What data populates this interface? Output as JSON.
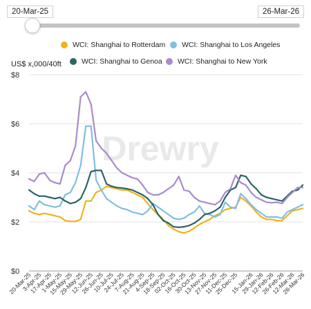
{
  "range_slider": {
    "start": "20-Mar-25",
    "end": "26-Mar-26"
  },
  "legend": [
    {
      "label": "WCI: Shanghai to Rotterdam",
      "color": "#f0b21c"
    },
    {
      "label": "WCI: Shanghai to Los Angeles",
      "color": "#83bde0"
    },
    {
      "label": "WCI: Shanghai to Genoa",
      "color": "#2a6467"
    },
    {
      "label": "WCI: Shanghai to New York",
      "color": "#a98bcb"
    }
  ],
  "watermark": {
    "brand": "Drewry"
  },
  "chart_data": {
    "type": "line",
    "ylabel": "US$ x,000/40ft",
    "ylim": [
      0,
      8
    ],
    "yticks": [
      0,
      2,
      4,
      6,
      8
    ],
    "ytick_labels": [
      "$0",
      "$2",
      "$4",
      "$6",
      "$8"
    ],
    "grid": true,
    "legend_position": "top",
    "x": [
      "20-Mar-25",
      "27-Mar-25",
      "3-Apr-25",
      "10-Apr-25",
      "17-Apr-25",
      "24-Apr-25",
      "1-May-25",
      "8-May-25",
      "15-May-25",
      "22-May-25",
      "29-May-25",
      "5-Jun-25",
      "12-Jun-25",
      "19-Jun-25",
      "26-Jun-25",
      "3-Jul-25",
      "10-Jul-25",
      "17-Jul-25",
      "24-Jul-25",
      "31-Jul-25",
      "7-Aug-25",
      "14-Aug-25",
      "21-Aug-25",
      "28-Aug-25",
      "4-Sep-25",
      "11-Sep-25",
      "18-Sep-25",
      "25-Sep-25",
      "2-Oct-25",
      "9-Oct-25",
      "16-Oct-25",
      "23-Oct-25",
      "30-Oct-25",
      "6-Nov-25",
      "13-Nov-25",
      "20-Nov-25",
      "27-Nov-25",
      "4-Dec-25",
      "11-Dec-25",
      "18-Dec-25",
      "25-Dec-25",
      "1-Jan-26",
      "8-Jan-26",
      "15-Jan-26",
      "22-Jan-26",
      "29-Jan-26",
      "5-Feb-26",
      "12-Feb-26",
      "19-Feb-26",
      "26-Feb-26",
      "5-Mar-26",
      "12-Mar-26",
      "19-Mar-26",
      "26-Mar-26"
    ],
    "x_tick_labels": [
      "20-Mar-25",
      "3-Apr-25",
      "17-Apr-25",
      "1-May-25",
      "15-May-25",
      "29-May-25",
      "12-Jun-25",
      "26-Jun-25",
      "10-Jul-25",
      "24-Jul-25",
      "7-Aug-25",
      "21-Aug-25",
      "4-Sep-25",
      "18-Sep-25",
      "02-Oct-25",
      "16-Oct-25",
      "30-Oct-25",
      "13-Nov-25",
      "27-Nov-25",
      "11-Dec-25",
      "25-Dec-25",
      "15-Jan-26",
      "29-Jan-26",
      "12-Feb-26",
      "26-Feb-26",
      "12-Mar-26",
      "26-Mar-26"
    ],
    "series": [
      {
        "name": "WCI: Shanghai to Rotterdam",
        "color": "#f0b21c",
        "values": [
          2.45,
          2.35,
          2.3,
          2.35,
          2.3,
          2.25,
          2.2,
          2.05,
          2.02,
          2.02,
          2.1,
          2.85,
          2.85,
          3.2,
          3.3,
          3.45,
          3.4,
          3.35,
          3.3,
          3.3,
          3.2,
          3.1,
          3.0,
          2.75,
          2.5,
          2.3,
          2.1,
          1.85,
          1.7,
          1.6,
          1.55,
          1.62,
          1.75,
          1.9,
          2.0,
          2.1,
          2.25,
          2.35,
          2.5,
          2.55,
          2.6,
          3.0,
          2.85,
          2.65,
          2.4,
          2.2,
          2.1,
          2.1,
          2.05,
          2.05,
          2.25,
          2.45,
          2.5,
          2.55
        ]
      },
      {
        "name": "WCI: Shanghai to Los Angeles",
        "color": "#83bde0",
        "values": [
          2.65,
          2.5,
          2.85,
          2.7,
          2.65,
          2.6,
          2.65,
          3.1,
          3.2,
          3.6,
          4.3,
          5.9,
          5.9,
          3.7,
          3.3,
          2.95,
          2.8,
          2.65,
          2.55,
          2.5,
          2.4,
          2.35,
          2.3,
          2.45,
          2.75,
          2.6,
          2.45,
          2.3,
          2.15,
          2.1,
          2.15,
          2.3,
          2.4,
          2.65,
          2.35,
          2.3,
          2.2,
          2.3,
          2.8,
          2.6,
          2.55,
          3.15,
          2.95,
          2.7,
          2.5,
          2.35,
          2.2,
          2.2,
          2.2,
          2.15,
          2.4,
          2.5,
          2.6,
          2.7
        ]
      },
      {
        "name": "WCI: Shanghai to Genoa",
        "color": "#2a6467",
        "values": [
          3.3,
          3.15,
          3.05,
          3.05,
          3.0,
          2.95,
          3.0,
          2.85,
          2.75,
          2.8,
          2.95,
          3.4,
          4.05,
          4.1,
          4.1,
          3.55,
          3.45,
          3.4,
          3.38,
          3.35,
          3.3,
          3.2,
          3.1,
          2.95,
          2.7,
          2.3,
          2.05,
          1.95,
          1.8,
          1.78,
          1.8,
          1.85,
          1.95,
          2.1,
          2.3,
          2.35,
          2.45,
          2.6,
          3.0,
          3.3,
          3.4,
          3.9,
          3.85,
          3.55,
          3.35,
          3.1,
          3.0,
          2.95,
          2.9,
          2.85,
          3.05,
          3.25,
          3.3,
          3.5
        ]
      },
      {
        "name": "WCI: Shanghai to New York",
        "color": "#a98bcb",
        "values": [
          3.75,
          3.65,
          3.95,
          4.0,
          3.7,
          3.6,
          3.55,
          4.3,
          4.5,
          5.1,
          7.1,
          7.3,
          6.8,
          5.3,
          5.0,
          4.8,
          4.5,
          4.2,
          4.0,
          3.9,
          3.8,
          3.75,
          3.5,
          3.2,
          3.1,
          3.1,
          3.2,
          3.35,
          3.5,
          3.85,
          3.3,
          3.25,
          3.0,
          2.85,
          2.8,
          2.75,
          2.7,
          2.85,
          3.2,
          3.35,
          3.9,
          3.6,
          3.5,
          3.2,
          3.0,
          2.9,
          2.8,
          2.78,
          2.8,
          2.75,
          3.0,
          3.2,
          3.4,
          3.4
        ]
      }
    ]
  }
}
